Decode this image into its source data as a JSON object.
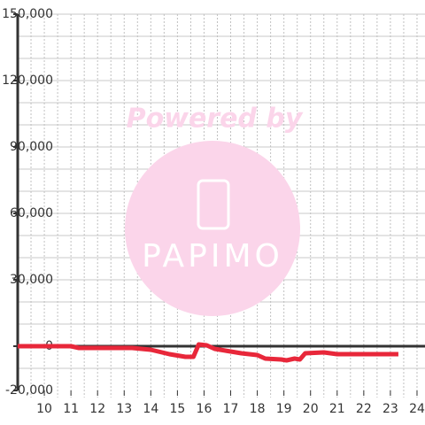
{
  "chart_data": {
    "type": "line",
    "watermark": {
      "text": "Powered by",
      "logo": "PAPIMO"
    },
    "x": [
      9.0,
      11.0,
      11.3,
      13.3,
      14.0,
      14.7,
      15.3,
      15.6,
      15.8,
      16.1,
      16.4,
      17.0,
      17.4,
      18.0,
      18.3,
      18.9,
      19.1,
      19.4,
      19.6,
      19.8,
      20.5,
      21.0,
      23.3
    ],
    "series": [
      {
        "color": "#e8273a",
        "values": [
          0,
          0,
          -800,
          -800,
          -1600,
          -3600,
          -4800,
          -4800,
          800,
          400,
          -1200,
          -2400,
          -3200,
          -4000,
          -5600,
          -6000,
          -6400,
          -5600,
          -6000,
          -3200,
          -2800,
          -3600,
          -3600
        ]
      }
    ],
    "xlim": [
      9,
      24.3
    ],
    "xticks": [
      10,
      11,
      12,
      13,
      14,
      15,
      16,
      17,
      18,
      19,
      20,
      21,
      22,
      23,
      24
    ],
    "xgrid": [
      9.5,
      10,
      10.5,
      11,
      11.5,
      12,
      12.5,
      13,
      13.5,
      14,
      14.5,
      15,
      15.5,
      16,
      16.5,
      17,
      17.5,
      18,
      18.5,
      19,
      19.5,
      20,
      20.5,
      21,
      21.5,
      22,
      22.5,
      23,
      23.5,
      24
    ],
    "ylim": [
      -20000,
      150000
    ],
    "yticks": [
      {
        "value": 150000,
        "label": "150,000"
      },
      {
        "value": 120000,
        "label": "120,000"
      },
      {
        "value": 90000,
        "label": "90,000"
      },
      {
        "value": 60000,
        "label": "60,000"
      },
      {
        "value": 30000,
        "label": "30,000"
      },
      0,
      {
        "value": -20000,
        "label": "-20,000"
      }
    ],
    "ygrid": [
      -10000,
      10000,
      20000,
      30000,
      40000,
      50000,
      60000,
      70000,
      80000,
      90000,
      100000,
      110000,
      120000,
      130000,
      140000,
      150000
    ]
  }
}
